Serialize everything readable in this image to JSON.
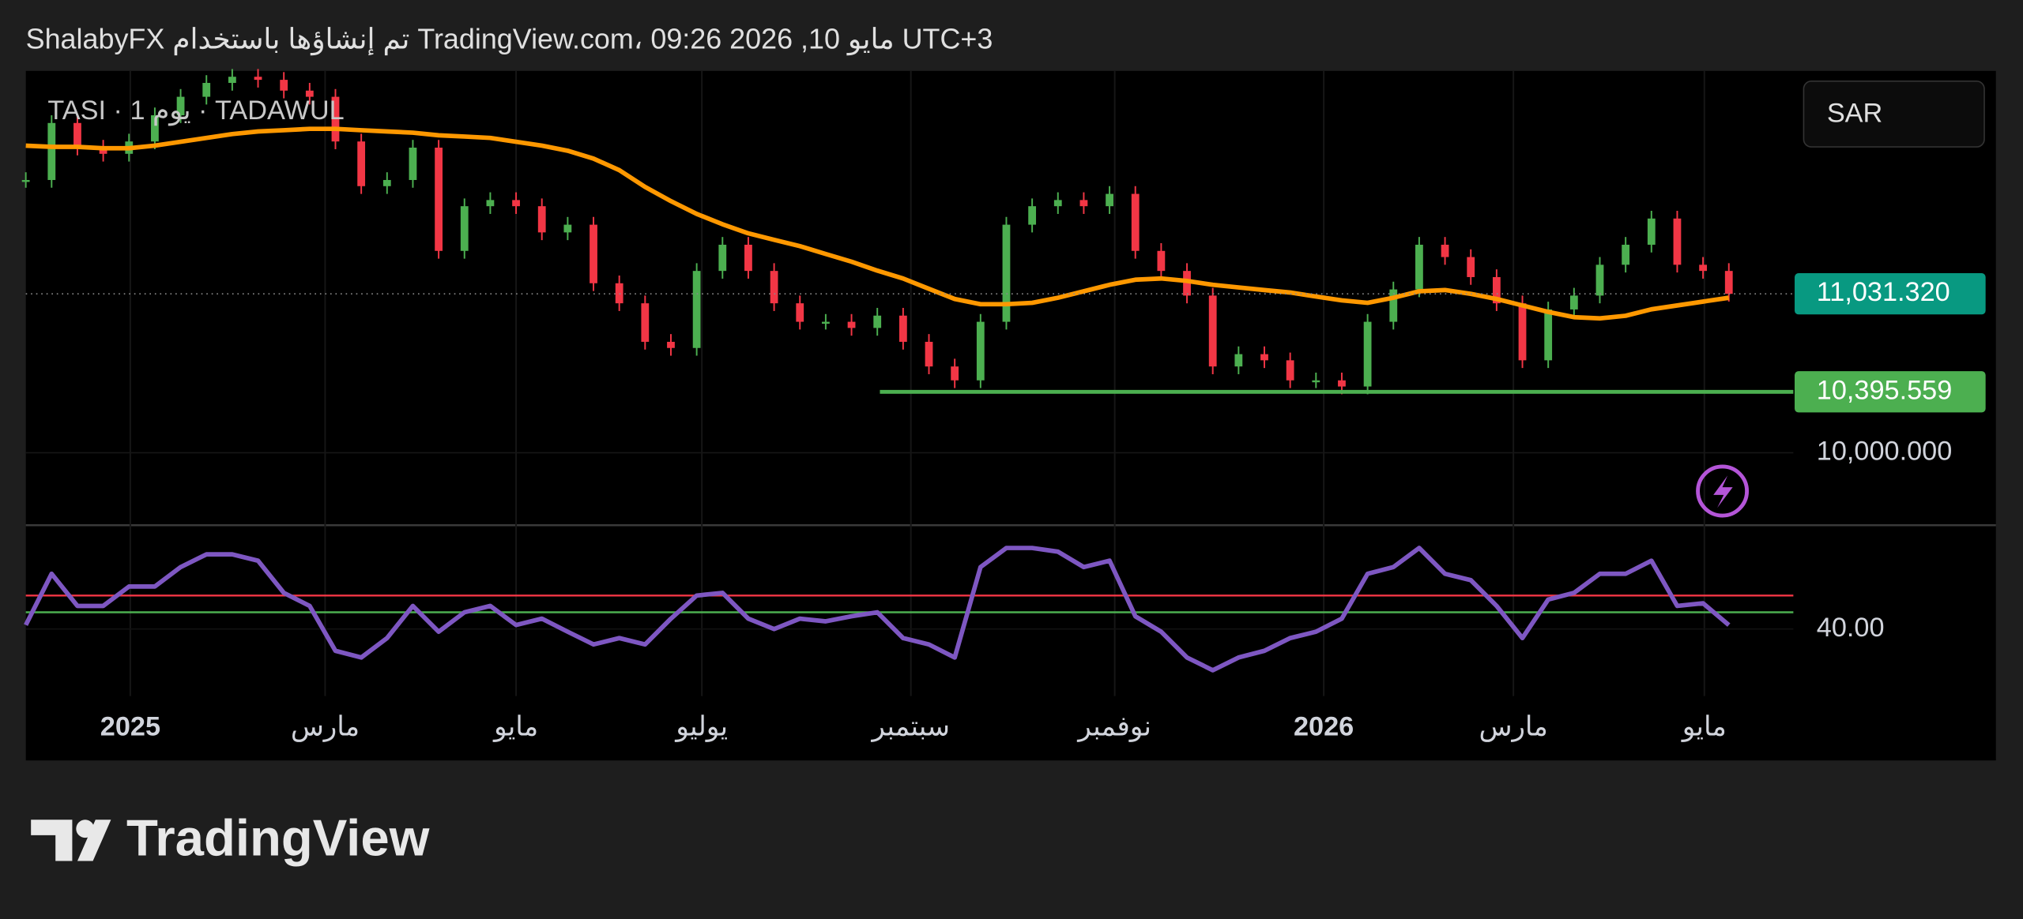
{
  "header": {
    "title": "ShalabyFX تم إنشاؤها باستخدام TradingView.com، 09:26 2026 ,10 مايو UTC+3"
  },
  "logo": "TradingView",
  "chart_data": [
    {
      "type": "candlestick",
      "legend": "TASI · 1 يوم · TADAWUL",
      "currency": "SAR",
      "up_color": "#4caf50",
      "down_color": "#f23645",
      "values": [
        11770,
        12140,
        11980,
        11940,
        12020,
        12190,
        12310,
        12400,
        12440,
        12420,
        12350,
        12310,
        12020,
        11730,
        11770,
        11980,
        11310,
        11600,
        11640,
        11600,
        11430,
        11480,
        11100,
        10970,
        10720,
        10680,
        11180,
        11350,
        11180,
        10970,
        10850,
        10850,
        10810,
        10890,
        10720,
        10560,
        10470,
        10850,
        11480,
        11600,
        11640,
        11600,
        11680,
        11310,
        11180,
        11020,
        10560,
        10640,
        10600,
        10470,
        10470,
        10430,
        10850,
        11060,
        11350,
        11270,
        11140,
        10970,
        10600,
        10930,
        11020,
        11220,
        11350,
        11520,
        11220,
        11180,
        11031.32
      ],
      "overlays": [
        {
          "color": "#ff9800",
          "values": [
            11993,
            11985,
            11985,
            11976,
            11976,
            11993,
            12018,
            12043,
            12068,
            12085,
            12093,
            12102,
            12102,
            12093,
            12085,
            12077,
            12060,
            12052,
            12043,
            12018,
            11993,
            11960,
            11909,
            11834,
            11725,
            11633,
            11550,
            11483,
            11424,
            11382,
            11341,
            11290,
            11240,
            11182,
            11131,
            11064,
            10998,
            10964,
            10964,
            10973,
            11006,
            11048,
            11090,
            11123,
            11131,
            11115,
            11090,
            11073,
            11056,
            11040,
            11014,
            10989,
            10973,
            11006,
            11048,
            11056,
            11031,
            10998,
            10956,
            10914,
            10880,
            10872,
            10889,
            10931,
            10956,
            10981,
            11006
          ]
        }
      ],
      "xlim": [
        0,
        68.5
      ],
      "ylim": [
        9534,
        12478
      ],
      "yticks": [
        {
          "value": 10000,
          "label": "10,000.000"
        }
      ],
      "last_price": {
        "value": 11031.32,
        "label": "11,031.320",
        "color": "#089981"
      },
      "level": {
        "value": 10395.559,
        "label": "10,395.559",
        "color": "#4caf50"
      }
    },
    {
      "type": "line",
      "color": "#7e57c2",
      "values": [
        41.2,
        56.5,
        46.9,
        46.9,
        52.7,
        52.7,
        58.5,
        62.3,
        62.3,
        60.4,
        50.8,
        46.9,
        33.5,
        31.5,
        37.3,
        46.9,
        39.2,
        45,
        46.9,
        41.2,
        43.1,
        39.2,
        35.4,
        37.3,
        35.4,
        43.1,
        50,
        50.8,
        43.1,
        40,
        43.1,
        42.3,
        43.8,
        45,
        37.3,
        35.4,
        31.5,
        58.5,
        64.2,
        64.2,
        63.1,
        58.5,
        60.4,
        43.8,
        39.2,
        31.5,
        27.7,
        31.5,
        33.5,
        37.3,
        39.2,
        43.1,
        56.5,
        58.5,
        64.2,
        56.5,
        54.6,
        46.9,
        37.3,
        48.8,
        50.8,
        56.5,
        56.5,
        60.4,
        46.9,
        47.7,
        41.2
      ],
      "xlim": [
        0,
        68.5
      ],
      "ylim": [
        20,
        70.8
      ],
      "yticks": [
        {
          "value": 40,
          "label": "40.00"
        }
      ],
      "hlines": [
        {
          "value": 50,
          "color": "#f23645"
        },
        {
          "value": 45,
          "color": "#4caf50"
        }
      ],
      "xticks": [
        {
          "value": 4.05,
          "label": "2025"
        },
        {
          "value": 11.6,
          "label": "مارس"
        },
        {
          "value": 19,
          "label": "مايو"
        },
        {
          "value": 26.2,
          "label": "يوليو"
        },
        {
          "value": 34.3,
          "label": "سبتمبر"
        },
        {
          "value": 42.2,
          "label": "نوفمبر"
        },
        {
          "value": 50.3,
          "label": "2026"
        },
        {
          "value": 57.65,
          "label": "مارس"
        },
        {
          "value": 65.05,
          "label": "مايو"
        }
      ]
    }
  ]
}
